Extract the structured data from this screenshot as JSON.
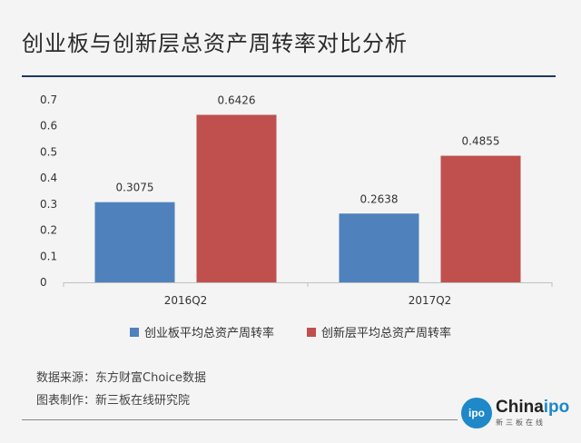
{
  "title": "创业板与创新层总资产周转率对比分析",
  "chart_data": {
    "type": "bar",
    "categories": [
      "2016Q2",
      "2017Q2"
    ],
    "series": [
      {
        "name": "创业板平均总资产周转率",
        "values": [
          0.3075,
          0.2638
        ],
        "color": "#4f81bd"
      },
      {
        "name": "创新层平均总资产周转率",
        "values": [
          0.6426,
          0.4855
        ],
        "color": "#c0504d"
      }
    ],
    "data_labels": [
      [
        "0.3075",
        "0.2638"
      ],
      [
        "0.6426",
        "0.4855"
      ]
    ],
    "ylim": [
      0,
      0.7
    ],
    "yticks": [
      "0",
      "0.1",
      "0.2",
      "0.3",
      "0.4",
      "0.5",
      "0.6",
      "0.7"
    ],
    "grid": false,
    "legend_position": "bottom"
  },
  "source": {
    "data_source": "数据来源：东方财富Choice数据",
    "producer": "图表制作：新三板在线研究院"
  },
  "logo": {
    "mark": "ipo",
    "name_prefix": "China",
    "name_suffix": "ipo",
    "subtitle": "新三板在线"
  }
}
